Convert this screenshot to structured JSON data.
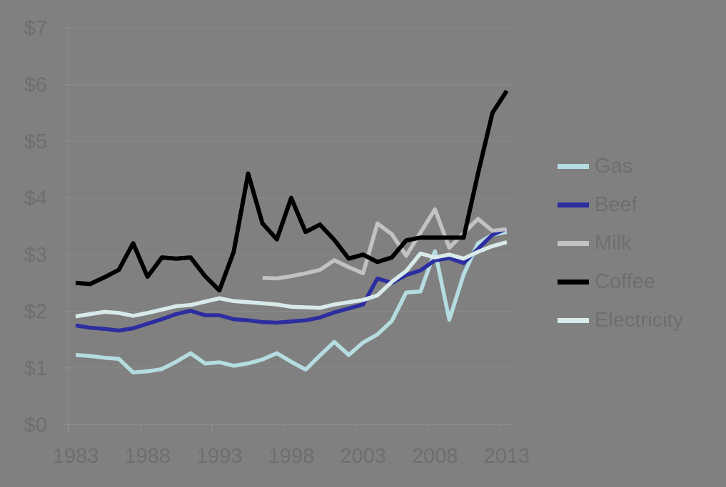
{
  "colors": {
    "background": "#808080",
    "gridline": "#8a8a8a",
    "axis": "#909090",
    "label_text": "#6e6e6e"
  },
  "chart_data": {
    "type": "line",
    "title": "",
    "xlabel": "",
    "ylabel": "",
    "x": [
      1983,
      1984,
      1985,
      1986,
      1987,
      1988,
      1989,
      1990,
      1991,
      1992,
      1993,
      1994,
      1995,
      1996,
      1997,
      1998,
      1999,
      2000,
      2001,
      2002,
      2003,
      2004,
      2005,
      2006,
      2007,
      2008,
      2009,
      2010,
      2011,
      2012,
      2013
    ],
    "xtick_labels": [
      "1983",
      "1988",
      "1993",
      "1998",
      "2003",
      "2008",
      "2013"
    ],
    "ytick_labels": [
      "$0",
      "$1",
      "$2",
      "$3",
      "$4",
      "$5",
      "$6",
      "$7"
    ],
    "ylim": [
      0,
      7
    ],
    "grid": true,
    "legend_position": "right",
    "series": [
      {
        "name": "Gas",
        "color": "#b5dce1",
        "values": [
          1.23,
          1.21,
          1.18,
          1.16,
          0.92,
          0.94,
          0.98,
          1.11,
          1.26,
          1.08,
          1.1,
          1.04,
          1.08,
          1.15,
          1.26,
          1.11,
          0.97,
          1.22,
          1.46,
          1.23,
          1.45,
          1.59,
          1.83,
          2.33,
          2.35,
          3.06,
          1.85,
          2.65,
          3.2,
          3.35,
          3.4
        ]
      },
      {
        "name": "Beef",
        "color": "#2c2da0",
        "values": [
          1.75,
          1.71,
          1.69,
          1.66,
          1.7,
          1.78,
          1.86,
          1.95,
          2.01,
          1.93,
          1.93,
          1.86,
          1.84,
          1.81,
          1.8,
          1.82,
          1.84,
          1.89,
          1.98,
          2.05,
          2.12,
          2.58,
          2.5,
          2.64,
          2.72,
          2.9,
          2.94,
          2.85,
          3.1,
          3.35,
          3.46
        ]
      },
      {
        "name": "Milk",
        "color": "#c2c2c4",
        "values": [
          null,
          null,
          null,
          null,
          null,
          null,
          null,
          null,
          null,
          null,
          null,
          null,
          null,
          2.59,
          2.58,
          2.62,
          2.67,
          2.73,
          2.9,
          2.78,
          2.67,
          3.55,
          3.36,
          2.98,
          3.39,
          3.8,
          3.12,
          3.38,
          3.63,
          3.42,
          3.45
        ]
      },
      {
        "name": "Coffee",
        "color": "#000000",
        "values": [
          2.5,
          2.48,
          2.6,
          2.73,
          3.2,
          2.61,
          2.95,
          2.93,
          2.95,
          2.62,
          2.37,
          3.05,
          4.43,
          3.55,
          3.27,
          4.0,
          3.4,
          3.53,
          3.26,
          2.93,
          3.0,
          2.87,
          2.95,
          3.25,
          3.3,
          3.3,
          3.3,
          3.3,
          4.43,
          5.5,
          5.89
        ]
      },
      {
        "name": "Electricity",
        "color": "#d8eaea",
        "values": [
          1.91,
          1.95,
          1.99,
          1.97,
          1.92,
          1.97,
          2.03,
          2.09,
          2.11,
          2.17,
          2.23,
          2.18,
          2.16,
          2.14,
          2.12,
          2.08,
          2.07,
          2.06,
          2.12,
          2.16,
          2.2,
          2.28,
          2.52,
          2.71,
          3.02,
          2.95,
          3.0,
          2.93,
          3.05,
          3.15,
          3.22
        ]
      }
    ]
  }
}
